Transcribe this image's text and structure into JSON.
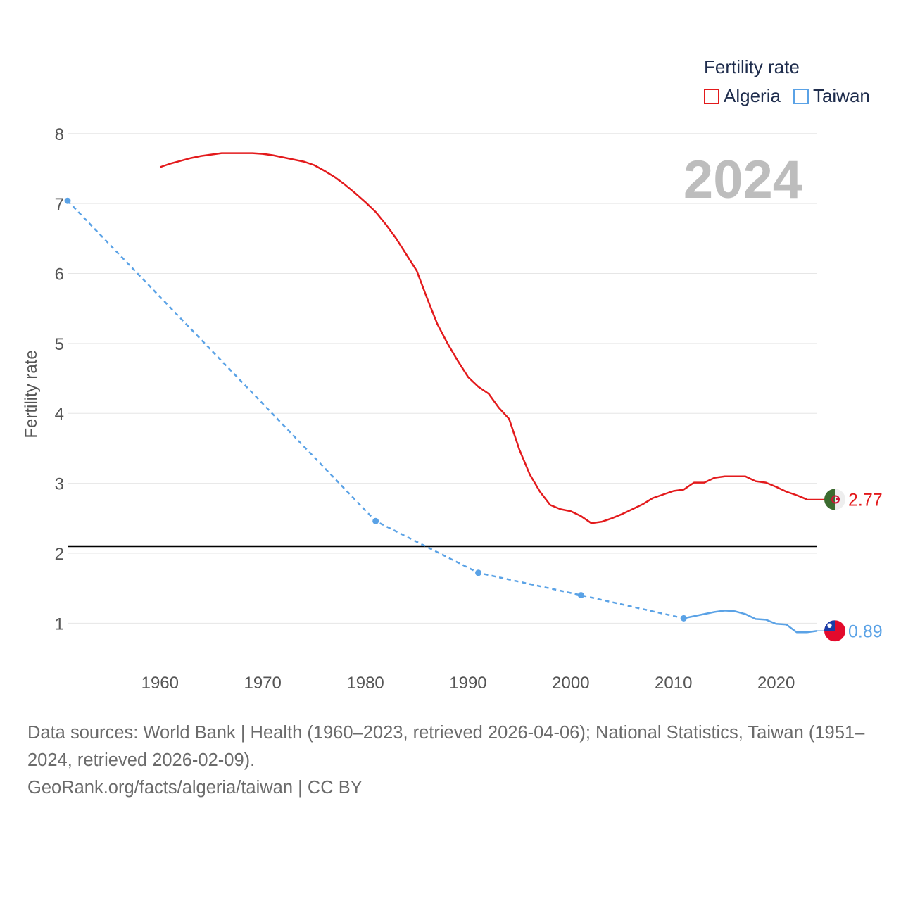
{
  "legend": {
    "title": "Fertility rate",
    "items": [
      {
        "label": "Algeria",
        "color": "#e31a1c"
      },
      {
        "label": "Taiwan",
        "color": "#5aa2e6"
      }
    ]
  },
  "source": {
    "line1": "Data sources: World Bank | Health (1960–2023, retrieved 2026-04-06); National Statistics, Taiwan (1951–2024, retrieved 2026-02-09).",
    "line2": "GeoRank.org/facts/algeria/taiwan | CC BY"
  },
  "chart_data": {
    "type": "line",
    "title": "",
    "year_label": "2024",
    "xlabel": "",
    "ylabel": "Fertility rate",
    "xlim": [
      1951,
      2024
    ],
    "ylim": [
      0.5,
      8.3
    ],
    "x_ticks": [
      1960,
      1970,
      1980,
      1990,
      2000,
      2010,
      2020
    ],
    "y_ticks": [
      1,
      2,
      3,
      4,
      5,
      6,
      7,
      8
    ],
    "reference_line": 2.1,
    "series": [
      {
        "name": "Algeria",
        "color": "#e31a1c",
        "style": "solid",
        "end_label": "2.77",
        "end_icon": "algeria-flag-icon",
        "points": [
          [
            1960,
            7.52
          ],
          [
            1961,
            7.57
          ],
          [
            1962,
            7.61
          ],
          [
            1963,
            7.65
          ],
          [
            1964,
            7.68
          ],
          [
            1965,
            7.7
          ],
          [
            1966,
            7.72
          ],
          [
            1967,
            7.72
          ],
          [
            1968,
            7.72
          ],
          [
            1969,
            7.72
          ],
          [
            1970,
            7.71
          ],
          [
            1971,
            7.69
          ],
          [
            1972,
            7.66
          ],
          [
            1973,
            7.63
          ],
          [
            1974,
            7.6
          ],
          [
            1975,
            7.55
          ],
          [
            1976,
            7.47
          ],
          [
            1977,
            7.38
          ],
          [
            1978,
            7.27
          ],
          [
            1979,
            7.15
          ],
          [
            1980,
            7.02
          ],
          [
            1981,
            6.88
          ],
          [
            1982,
            6.7
          ],
          [
            1983,
            6.5
          ],
          [
            1984,
            6.27
          ],
          [
            1985,
            6.04
          ],
          [
            1986,
            5.65
          ],
          [
            1987,
            5.28
          ],
          [
            1988,
            5.0
          ],
          [
            1989,
            4.75
          ],
          [
            1990,
            4.52
          ],
          [
            1991,
            4.38
          ],
          [
            1992,
            4.28
          ],
          [
            1993,
            4.08
          ],
          [
            1994,
            3.92
          ],
          [
            1995,
            3.48
          ],
          [
            1996,
            3.13
          ],
          [
            1997,
            2.88
          ],
          [
            1998,
            2.69
          ],
          [
            1999,
            2.63
          ],
          [
            2000,
            2.6
          ],
          [
            2001,
            2.53
          ],
          [
            2002,
            2.43
          ],
          [
            2003,
            2.45
          ],
          [
            2004,
            2.5
          ],
          [
            2005,
            2.56
          ],
          [
            2006,
            2.63
          ],
          [
            2007,
            2.7
          ],
          [
            2008,
            2.79
          ],
          [
            2009,
            2.84
          ],
          [
            2010,
            2.89
          ],
          [
            2011,
            2.91
          ],
          [
            2012,
            3.01
          ],
          [
            2013,
            3.01
          ],
          [
            2014,
            3.08
          ],
          [
            2015,
            3.1
          ],
          [
            2016,
            3.1
          ],
          [
            2017,
            3.1
          ],
          [
            2018,
            3.03
          ],
          [
            2019,
            3.01
          ],
          [
            2020,
            2.95
          ],
          [
            2021,
            2.88
          ],
          [
            2022,
            2.83
          ],
          [
            2023,
            2.77
          ]
        ]
      },
      {
        "name": "Taiwan",
        "color": "#5aa2e6",
        "style": "dashed-then-solid",
        "end_label": "0.89",
        "end_icon": "taiwan-flag-icon",
        "markers": [
          [
            1951,
            7.04
          ],
          [
            1981,
            2.46
          ],
          [
            1991,
            1.72
          ],
          [
            2001,
            1.4
          ],
          [
            2011,
            1.07
          ]
        ],
        "points": [
          [
            1951,
            7.04
          ],
          [
            1981,
            2.46
          ],
          [
            1991,
            1.72
          ],
          [
            2001,
            1.4
          ],
          [
            2011,
            1.07
          ],
          [
            2012,
            1.1
          ],
          [
            2013,
            1.13
          ],
          [
            2014,
            1.16
          ],
          [
            2015,
            1.18
          ],
          [
            2016,
            1.17
          ],
          [
            2017,
            1.13
          ],
          [
            2018,
            1.06
          ],
          [
            2019,
            1.05
          ],
          [
            2020,
            0.99
          ],
          [
            2021,
            0.98
          ],
          [
            2022,
            0.87
          ],
          [
            2023,
            0.87
          ],
          [
            2024,
            0.89
          ]
        ]
      }
    ]
  }
}
